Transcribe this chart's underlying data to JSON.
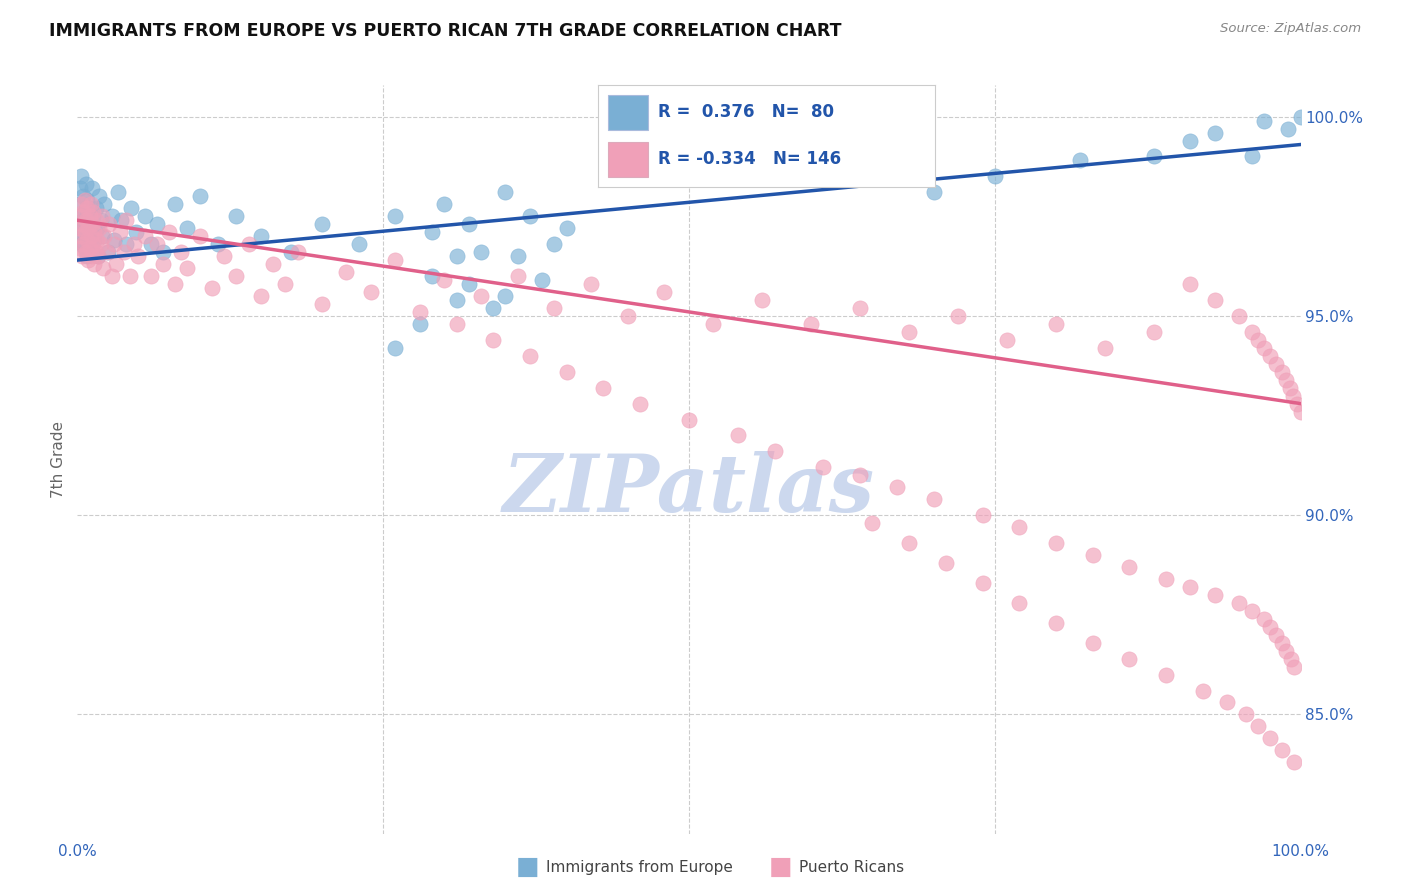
{
  "title": "IMMIGRANTS FROM EUROPE VS PUERTO RICAN 7TH GRADE CORRELATION CHART",
  "source": "Source: ZipAtlas.com",
  "ylabel": "7th Grade",
  "right_yticks": [
    "100.0%",
    "95.0%",
    "90.0%",
    "85.0%"
  ],
  "right_ytick_vals": [
    1.0,
    0.95,
    0.9,
    0.85
  ],
  "legend_blue_label": "Immigrants from Europe",
  "legend_pink_label": "Puerto Ricans",
  "R_blue": 0.376,
  "N_blue": 80,
  "R_pink": -0.334,
  "N_pink": 146,
  "blue_color": "#7aafd4",
  "pink_color": "#f0a0b8",
  "blue_line_color": "#2255aa",
  "pink_line_color": "#e0608a",
  "xlim": [
    0.0,
    1.0
  ],
  "ylim": [
    0.82,
    1.008
  ],
  "background_color": "#ffffff",
  "watermark_text": "ZIPatlas",
  "watermark_color": "#ccd8ee",
  "blue_scatter_x": [
    0.001,
    0.002,
    0.002,
    0.003,
    0.003,
    0.003,
    0.004,
    0.004,
    0.005,
    0.005,
    0.006,
    0.006,
    0.007,
    0.007,
    0.008,
    0.008,
    0.009,
    0.01,
    0.01,
    0.011,
    0.012,
    0.013,
    0.014,
    0.015,
    0.016,
    0.017,
    0.018,
    0.019,
    0.02,
    0.022,
    0.025,
    0.028,
    0.03,
    0.033,
    0.036,
    0.04,
    0.044,
    0.048,
    0.055,
    0.06,
    0.065,
    0.07,
    0.08,
    0.09,
    0.1,
    0.115,
    0.13,
    0.15,
    0.175,
    0.2,
    0.23,
    0.26,
    0.29,
    0.3,
    0.31,
    0.32,
    0.33,
    0.35,
    0.37,
    0.39,
    0.32,
    0.34,
    0.36,
    0.38,
    0.4,
    0.35,
    0.28,
    0.26,
    0.29,
    0.31,
    0.7,
    0.75,
    0.82,
    0.88,
    0.91,
    0.93,
    0.96,
    0.97,
    0.99,
    1.0
  ],
  "blue_scatter_y": [
    0.971,
    0.978,
    0.982,
    0.969,
    0.975,
    0.985,
    0.972,
    0.968,
    0.974,
    0.98,
    0.967,
    0.976,
    0.97,
    0.983,
    0.965,
    0.979,
    0.973,
    0.968,
    0.977,
    0.971,
    0.982,
    0.975,
    0.969,
    0.977,
    0.972,
    0.965,
    0.98,
    0.974,
    0.97,
    0.978,
    0.966,
    0.975,
    0.969,
    0.981,
    0.974,
    0.968,
    0.977,
    0.971,
    0.975,
    0.968,
    0.973,
    0.966,
    0.978,
    0.972,
    0.98,
    0.968,
    0.975,
    0.97,
    0.966,
    0.973,
    0.968,
    0.975,
    0.971,
    0.978,
    0.965,
    0.973,
    0.966,
    0.981,
    0.975,
    0.968,
    0.958,
    0.952,
    0.965,
    0.959,
    0.972,
    0.955,
    0.948,
    0.942,
    0.96,
    0.954,
    0.981,
    0.985,
    0.989,
    0.99,
    0.994,
    0.996,
    0.99,
    0.999,
    0.997,
    1.0
  ],
  "pink_scatter_x": [
    0.001,
    0.002,
    0.002,
    0.003,
    0.003,
    0.004,
    0.004,
    0.005,
    0.005,
    0.006,
    0.006,
    0.007,
    0.007,
    0.008,
    0.008,
    0.009,
    0.009,
    0.01,
    0.01,
    0.011,
    0.011,
    0.012,
    0.012,
    0.013,
    0.013,
    0.014,
    0.014,
    0.015,
    0.015,
    0.016,
    0.017,
    0.018,
    0.019,
    0.02,
    0.021,
    0.022,
    0.024,
    0.026,
    0.028,
    0.03,
    0.032,
    0.035,
    0.038,
    0.04,
    0.043,
    0.046,
    0.05,
    0.055,
    0.06,
    0.065,
    0.07,
    0.075,
    0.08,
    0.085,
    0.09,
    0.1,
    0.11,
    0.12,
    0.13,
    0.14,
    0.15,
    0.16,
    0.17,
    0.18,
    0.2,
    0.22,
    0.24,
    0.26,
    0.28,
    0.3,
    0.33,
    0.36,
    0.39,
    0.42,
    0.45,
    0.48,
    0.52,
    0.56,
    0.6,
    0.64,
    0.68,
    0.72,
    0.76,
    0.8,
    0.84,
    0.88,
    0.91,
    0.93,
    0.95,
    0.96,
    0.965,
    0.97,
    0.975,
    0.98,
    0.985,
    0.988,
    0.991,
    0.994,
    0.997,
    1.0,
    0.31,
    0.34,
    0.37,
    0.4,
    0.43,
    0.46,
    0.5,
    0.54,
    0.57,
    0.61,
    0.64,
    0.67,
    0.7,
    0.74,
    0.77,
    0.8,
    0.83,
    0.86,
    0.89,
    0.91,
    0.93,
    0.95,
    0.96,
    0.97,
    0.975,
    0.98,
    0.985,
    0.988,
    0.992,
    0.995,
    0.65,
    0.68,
    0.71,
    0.74,
    0.77,
    0.8,
    0.83,
    0.86,
    0.89,
    0.92,
    0.94,
    0.955,
    0.965,
    0.975,
    0.985,
    0.995
  ],
  "pink_scatter_y": [
    0.972,
    0.967,
    0.975,
    0.97,
    0.978,
    0.965,
    0.973,
    0.968,
    0.976,
    0.971,
    0.979,
    0.966,
    0.974,
    0.969,
    0.977,
    0.964,
    0.972,
    0.967,
    0.975,
    0.97,
    0.978,
    0.965,
    0.973,
    0.968,
    0.976,
    0.963,
    0.971,
    0.966,
    0.974,
    0.969,
    0.965,
    0.972,
    0.968,
    0.975,
    0.962,
    0.97,
    0.966,
    0.973,
    0.96,
    0.968,
    0.963,
    0.971,
    0.966,
    0.974,
    0.96,
    0.968,
    0.965,
    0.97,
    0.96,
    0.968,
    0.963,
    0.971,
    0.958,
    0.966,
    0.962,
    0.97,
    0.957,
    0.965,
    0.96,
    0.968,
    0.955,
    0.963,
    0.958,
    0.966,
    0.953,
    0.961,
    0.956,
    0.964,
    0.951,
    0.959,
    0.955,
    0.96,
    0.952,
    0.958,
    0.95,
    0.956,
    0.948,
    0.954,
    0.948,
    0.952,
    0.946,
    0.95,
    0.944,
    0.948,
    0.942,
    0.946,
    0.958,
    0.954,
    0.95,
    0.946,
    0.944,
    0.942,
    0.94,
    0.938,
    0.936,
    0.934,
    0.932,
    0.93,
    0.928,
    0.926,
    0.948,
    0.944,
    0.94,
    0.936,
    0.932,
    0.928,
    0.924,
    0.92,
    0.916,
    0.912,
    0.91,
    0.907,
    0.904,
    0.9,
    0.897,
    0.893,
    0.89,
    0.887,
    0.884,
    0.882,
    0.88,
    0.878,
    0.876,
    0.874,
    0.872,
    0.87,
    0.868,
    0.866,
    0.864,
    0.862,
    0.898,
    0.893,
    0.888,
    0.883,
    0.878,
    0.873,
    0.868,
    0.864,
    0.86,
    0.856,
    0.853,
    0.85,
    0.847,
    0.844,
    0.841,
    0.838
  ]
}
